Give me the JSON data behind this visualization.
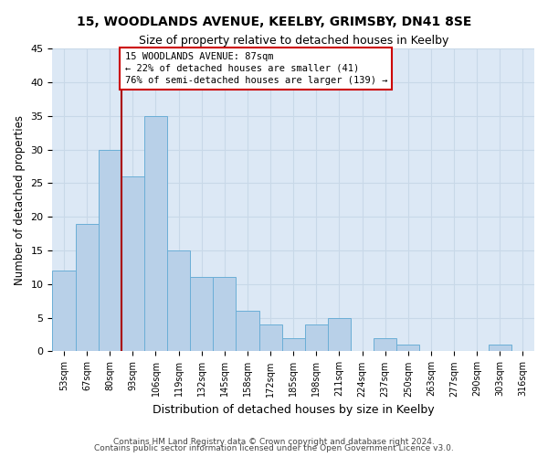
{
  "title1": "15, WOODLANDS AVENUE, KEELBY, GRIMSBY, DN41 8SE",
  "title2": "Size of property relative to detached houses in Keelby",
  "xlabel": "Distribution of detached houses by size in Keelby",
  "ylabel": "Number of detached properties",
  "categories": [
    "53sqm",
    "67sqm",
    "80sqm",
    "93sqm",
    "106sqm",
    "119sqm",
    "132sqm",
    "145sqm",
    "158sqm",
    "172sqm",
    "185sqm",
    "198sqm",
    "211sqm",
    "224sqm",
    "237sqm",
    "250sqm",
    "263sqm",
    "277sqm",
    "290sqm",
    "303sqm",
    "316sqm"
  ],
  "values": [
    12,
    19,
    30,
    26,
    35,
    15,
    11,
    11,
    6,
    4,
    2,
    4,
    5,
    0,
    2,
    1,
    0,
    0,
    0,
    1,
    0
  ],
  "bar_color": "#b8d0e8",
  "bar_edge_color": "#6baed6",
  "bar_width": 1.0,
  "property_line_x": 2.5,
  "annotation_line1": "15 WOODLANDS AVENUE: 87sqm",
  "annotation_line2": "← 22% of detached houses are smaller (41)",
  "annotation_line3": "76% of semi-detached houses are larger (139) →",
  "annotation_box_color": "#ffffff",
  "annotation_box_edge": "#cc0000",
  "property_line_color": "#aa0000",
  "ylim": [
    0,
    45
  ],
  "yticks": [
    0,
    5,
    10,
    15,
    20,
    25,
    30,
    35,
    40,
    45
  ],
  "grid_color": "#c8d8e8",
  "bg_color": "#dce8f5",
  "footer_line1": "Contains HM Land Registry data © Crown copyright and database right 2024.",
  "footer_line2": "Contains public sector information licensed under the Open Government Licence v3.0."
}
